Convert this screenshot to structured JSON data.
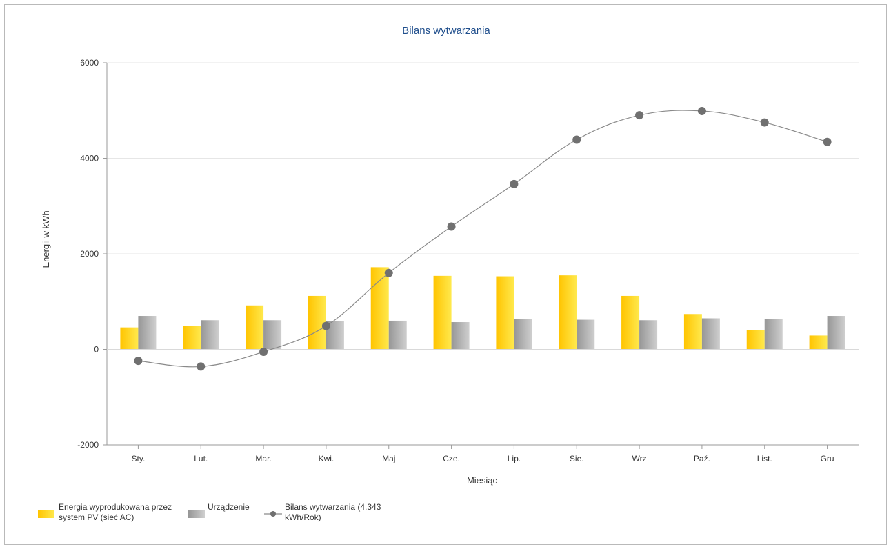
{
  "chart_data": {
    "type": "bar",
    "title": "Bilans wytwarzania",
    "xlabel": "Miesiąc",
    "ylabel": "Energii w kWh",
    "ylim": [
      -2000,
      6000
    ],
    "yticks": [
      6000,
      4000,
      2000,
      0,
      -2000
    ],
    "grid": true,
    "legend_position": "bottom-left",
    "categories": [
      "Sty.",
      "Lut.",
      "Mar.",
      "Kwi.",
      "Maj",
      "Cze.",
      "Lip.",
      "Sie.",
      "Wrz",
      "Paź.",
      "List.",
      "Gru"
    ],
    "series": [
      {
        "name_lines": [
          "Energia wyprodukowana przez",
          "system PV (sieć AC)"
        ],
        "type": "bar",
        "color": "#ffd200",
        "values": [
          460,
          490,
          920,
          1120,
          1720,
          1540,
          1530,
          1550,
          1120,
          740,
          400,
          290
        ]
      },
      {
        "name_lines": [
          "Urządzenie"
        ],
        "type": "bar",
        "color": "#a8a8a8",
        "values": [
          700,
          610,
          610,
          590,
          600,
          570,
          640,
          620,
          610,
          650,
          640,
          700
        ]
      },
      {
        "name_lines": [
          "Bilans wytwarzania (4.343",
          "kWh/Rok)"
        ],
        "type": "line",
        "color": "#707070",
        "values": [
          -240,
          -360,
          -50,
          490,
          1600,
          2570,
          3460,
          4390,
          4900,
          4990,
          4750,
          4343
        ]
      }
    ]
  }
}
